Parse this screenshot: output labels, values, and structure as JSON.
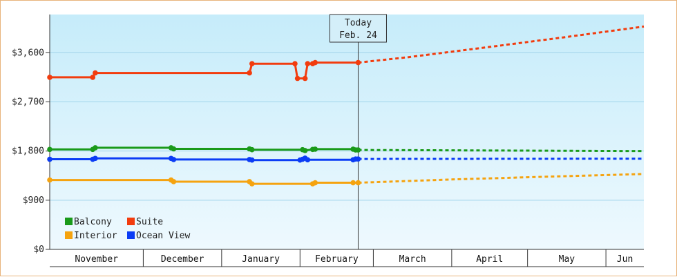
{
  "chart_data": {
    "type": "line",
    "title": "",
    "xlabel": "",
    "ylabel": "",
    "ylim": [
      0,
      4300
    ],
    "yticks": [
      {
        "value": 0,
        "label": "$0"
      },
      {
        "value": 900,
        "label": "$900"
      },
      {
        "value": 1800,
        "label": "$1,800"
      },
      {
        "value": 2700,
        "label": "$2,700"
      },
      {
        "value": 3600,
        "label": "$3,600"
      }
    ],
    "x_unit": "date",
    "x_range": [
      "2019-10-25",
      "2020-06-16"
    ],
    "months": [
      {
        "label": "November",
        "start": "2019-10-25",
        "end": "2019-12-01"
      },
      {
        "label": "December",
        "start": "2019-12-01",
        "end": "2020-01-01"
      },
      {
        "label": "January",
        "start": "2020-01-01",
        "end": "2020-02-01"
      },
      {
        "label": "February",
        "start": "2020-02-01",
        "end": "2020-03-01"
      },
      {
        "label": "March",
        "start": "2020-03-01",
        "end": "2020-04-01"
      },
      {
        "label": "April",
        "start": "2020-04-01",
        "end": "2020-05-01"
      },
      {
        "label": "May",
        "start": "2020-05-01",
        "end": "2020-06-01"
      },
      {
        "label": "Jun",
        "start": "2020-06-01",
        "end": "2020-06-16"
      }
    ],
    "today": {
      "line1": "Today",
      "line2": "Feb. 24",
      "date": "2020-02-24"
    },
    "legend_position": "bottom-left",
    "grid": "horizontal",
    "background": {
      "top": "#c6ecfa",
      "bottom": "#eef9fe"
    },
    "series": [
      {
        "name": "Balcony",
        "color": "#1a9a1a",
        "history": [
          [
            "2019-10-25",
            1830
          ],
          [
            "2019-11-11",
            1830
          ],
          [
            "2019-11-12",
            1860
          ],
          [
            "2019-12-12",
            1860
          ],
          [
            "2019-12-13",
            1840
          ],
          [
            "2020-01-12",
            1840
          ],
          [
            "2020-01-13",
            1825
          ],
          [
            "2020-02-02",
            1825
          ],
          [
            "2020-02-03",
            1810
          ],
          [
            "2020-02-06",
            1830
          ],
          [
            "2020-02-07",
            1835
          ],
          [
            "2020-02-22",
            1835
          ],
          [
            "2020-02-23",
            1820
          ],
          [
            "2020-02-24",
            1820
          ]
        ],
        "forecast": [
          [
            "2020-02-24",
            1820
          ],
          [
            "2020-06-16",
            1800
          ]
        ]
      },
      {
        "name": "Suite",
        "color": "#f23c0e",
        "history": [
          [
            "2019-10-25",
            3150
          ],
          [
            "2019-11-11",
            3150
          ],
          [
            "2019-11-12",
            3230
          ],
          [
            "2020-01-12",
            3230
          ],
          [
            "2020-01-13",
            3400
          ],
          [
            "2020-01-30",
            3400
          ],
          [
            "2020-01-31",
            3130
          ],
          [
            "2020-02-03",
            3130
          ],
          [
            "2020-02-04",
            3400
          ],
          [
            "2020-02-06",
            3400
          ],
          [
            "2020-02-07",
            3420
          ],
          [
            "2020-02-24",
            3420
          ]
        ],
        "forecast": [
          [
            "2020-02-24",
            3420
          ],
          [
            "2020-03-15",
            3520
          ],
          [
            "2020-04-15",
            3700
          ],
          [
            "2020-05-15",
            3880
          ],
          [
            "2020-06-16",
            4080
          ]
        ]
      },
      {
        "name": "Interior",
        "color": "#f5a30f",
        "history": [
          [
            "2019-10-25",
            1270
          ],
          [
            "2019-12-12",
            1270
          ],
          [
            "2019-12-13",
            1240
          ],
          [
            "2020-01-12",
            1240
          ],
          [
            "2020-01-13",
            1200
          ],
          [
            "2020-02-06",
            1200
          ],
          [
            "2020-02-07",
            1220
          ],
          [
            "2020-02-22",
            1220
          ],
          [
            "2020-02-24",
            1220
          ]
        ],
        "forecast": [
          [
            "2020-02-24",
            1220
          ],
          [
            "2020-04-01",
            1280
          ],
          [
            "2020-05-01",
            1320
          ],
          [
            "2020-06-16",
            1380
          ]
        ]
      },
      {
        "name": "Ocean View",
        "color": "#0b3cf5",
        "history": [
          [
            "2019-10-25",
            1650
          ],
          [
            "2019-11-11",
            1650
          ],
          [
            "2019-11-12",
            1665
          ],
          [
            "2019-12-12",
            1665
          ],
          [
            "2019-12-13",
            1645
          ],
          [
            "2020-01-12",
            1645
          ],
          [
            "2020-01-13",
            1635
          ],
          [
            "2020-02-01",
            1635
          ],
          [
            "2020-02-02",
            1650
          ],
          [
            "2020-02-03",
            1670
          ],
          [
            "2020-02-04",
            1640
          ],
          [
            "2020-02-22",
            1640
          ],
          [
            "2020-02-23",
            1655
          ],
          [
            "2020-02-24",
            1655
          ]
        ],
        "forecast": [
          [
            "2020-02-24",
            1655
          ],
          [
            "2020-06-16",
            1660
          ]
        ]
      }
    ],
    "legend": [
      {
        "label": "Balcony",
        "color": "#1a9a1a"
      },
      {
        "label": "Suite",
        "color": "#f23c0e"
      },
      {
        "label": "Interior",
        "color": "#f5a30f"
      },
      {
        "label": "Ocean View",
        "color": "#0b3cf5"
      }
    ]
  }
}
